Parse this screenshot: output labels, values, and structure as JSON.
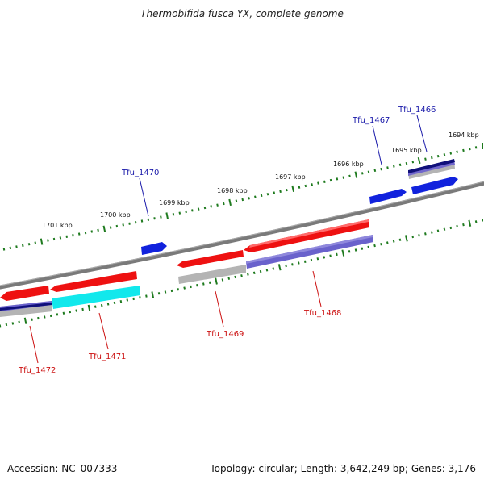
{
  "title": "Thermobifida fusca YX, complete genome",
  "footer": {
    "accession": "Accession: NC_007333",
    "topology": "Topology: circular; Length: 3,642,249 bp; Genes: 3,176"
  },
  "colors": {
    "backbone": "#7a7a7a",
    "tick": "#1e7a1e",
    "cds_red": "#ee1111",
    "cds_blue": "#1122dd",
    "gene_gray": "#b4b4b4",
    "purple": "#6a62cc",
    "cyan": "#12e8ec",
    "label_blue": "#1a1aaa",
    "label_red": "#cc1111"
  },
  "scale": {
    "unit": "kbp",
    "labels": [
      "1694 kbp",
      "1695 kbp",
      "1696 kbp",
      "1697 kbp",
      "1698 kbp",
      "1699 kbp",
      "1700 kbp",
      "1701 kbp"
    ]
  },
  "genes": {
    "top_strand": [
      "Tfu_1466",
      "Tfu_1467",
      "Tfu_1470"
    ],
    "bottom_strand": [
      "Tfu_1468",
      "Tfu_1469",
      "Tfu_1471",
      "Tfu_1472"
    ]
  }
}
